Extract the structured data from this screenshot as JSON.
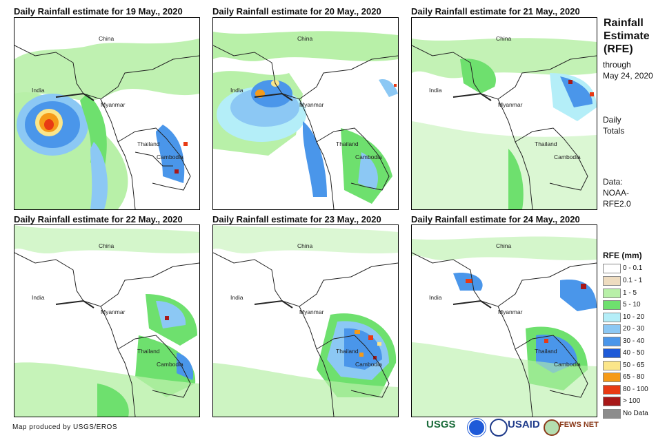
{
  "panels": [
    {
      "title": "Daily Rainfall estimate for 19 May., 2020"
    },
    {
      "title": "Daily Rainfall estimate for 20 May., 2020"
    },
    {
      "title": "Daily Rainfall estimate for 21 May., 2020"
    },
    {
      "title": "Daily Rainfall estimate for 22 May., 2020"
    },
    {
      "title": "Daily Rainfall estimate for 23 May., 2020"
    },
    {
      "title": "Daily Rainfall estimate for 24 May., 2020"
    }
  ],
  "map_labels": {
    "china": "China",
    "india": "India",
    "myanmar": "Myanmar",
    "thailand": "Thailand",
    "cambodia": "Cambodia"
  },
  "sidebar": {
    "title_line1": "Rainfall",
    "title_line2": "Estimate",
    "title_line3": "(RFE)",
    "through": "through",
    "through_date": "May 24, 2020",
    "daily": "Daily",
    "totals": "Totals",
    "data_label": "Data:",
    "data_source1": "NOAA-",
    "data_source2": "RFE2.0"
  },
  "legend": {
    "title": "RFE (mm)",
    "items": [
      {
        "label": "0 - 0.1",
        "color": "#ffffff"
      },
      {
        "label": "0.1 - 1",
        "color": "#eedcc0"
      },
      {
        "label": "1 - 5",
        "color": "#b8f0a8"
      },
      {
        "label": "5 - 10",
        "color": "#6ee06e"
      },
      {
        "label": "10 - 20",
        "color": "#b4eef8"
      },
      {
        "label": "20 - 30",
        "color": "#8cc8f4"
      },
      {
        "label": "30 - 40",
        "color": "#4a96ea"
      },
      {
        "label": "40 - 50",
        "color": "#1e5ad8"
      },
      {
        "label": "50 - 65",
        "color": "#fbe68a"
      },
      {
        "label": "65 - 80",
        "color": "#f59a18"
      },
      {
        "label": "80 - 100",
        "color": "#e83a14"
      },
      {
        "label": "> 100",
        "color": "#a81818"
      },
      {
        "label": "No Data",
        "color": "#8c8c8c"
      }
    ]
  },
  "credit": "Map produced by USGS/EROS",
  "logos": {
    "usgs": "USGS",
    "usaid": "USAID",
    "fewsnet": "FEWS NET"
  }
}
